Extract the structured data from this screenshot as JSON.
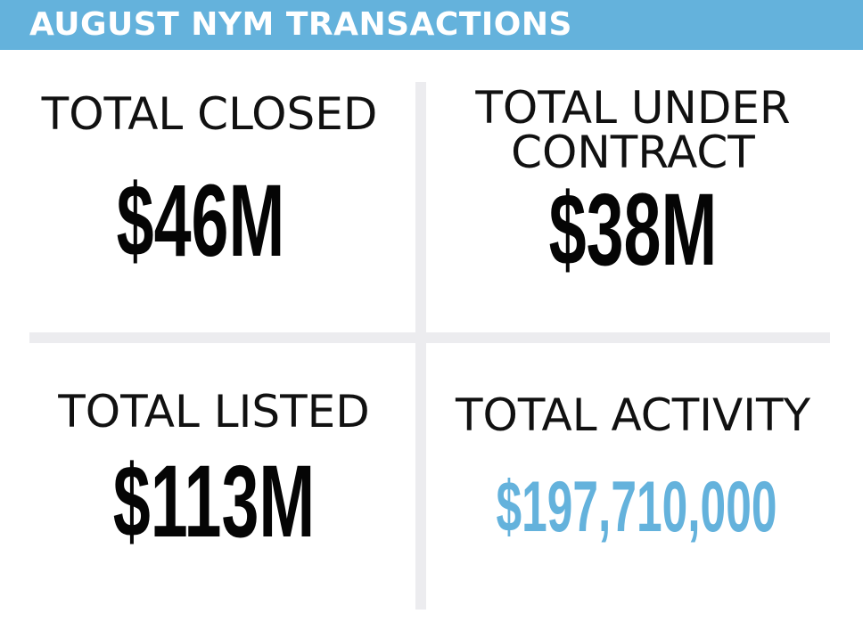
{
  "header": {
    "title": "AUGUST NYM TRANSACTIONS",
    "background_color": "#64b2dc"
  },
  "quadrants": [
    {
      "label": "TOTAL CLOSED",
      "value": "$46M"
    },
    {
      "label_line1": "TOTAL UNDER",
      "label_line2": "CONTRACT",
      "value": "$38M"
    },
    {
      "label": "TOTAL LISTED",
      "value": "$113M"
    },
    {
      "label": "TOTAL ACTIVITY",
      "value": "$197,710,000",
      "value_color": "#64b2dc"
    }
  ],
  "colors": {
    "accent": "#64b2dc",
    "divider": "#ececef",
    "text": "#050505"
  }
}
